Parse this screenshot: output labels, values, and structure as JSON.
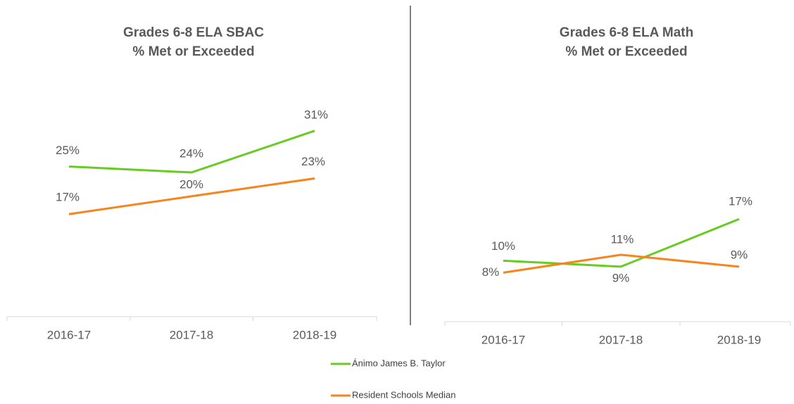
{
  "chart_data": [
    {
      "type": "line",
      "title": "Grades 6-8 ELA SBAC",
      "subtitle": "% Met or Exceeded",
      "categories": [
        "2016-17",
        "2017-18",
        "2018-19"
      ],
      "ylim": [
        0,
        35
      ],
      "series": [
        {
          "name": "Ánimo James B. Taylor",
          "color": "#66cc22",
          "values": [
            25,
            24,
            31
          ],
          "value_labels": [
            "25%",
            "24%",
            "31%"
          ]
        },
        {
          "name": "Resident Schools Median",
          "color": "#f7841c",
          "values": [
            17,
            20,
            23
          ],
          "value_labels": [
            "17%",
            "20%",
            "23%"
          ]
        }
      ]
    },
    {
      "type": "line",
      "title": "Grades 6-8 ELA Math",
      "subtitle": "% Met or Exceeded",
      "categories": [
        "2016-17",
        "2017-18",
        "2018-19"
      ],
      "ylim": [
        0,
        35
      ],
      "series": [
        {
          "color": "#66cc22",
          "values": [
            10,
            9,
            17
          ],
          "value_labels": [
            "10%",
            "9%",
            "17%"
          ]
        },
        {
          "color": "#f7841c",
          "values": [
            8,
            11,
            9
          ],
          "value_labels": [
            "8%",
            "11%",
            "9%"
          ]
        }
      ]
    }
  ]
}
